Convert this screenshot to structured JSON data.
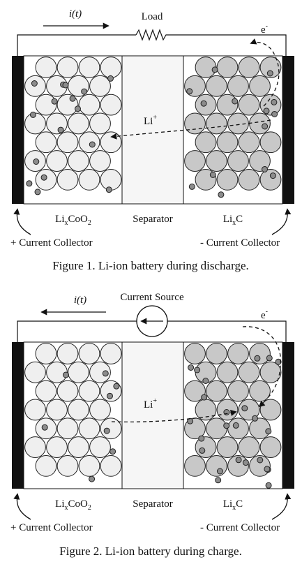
{
  "figure1": {
    "current_label": "i(t)",
    "device_label": "Load",
    "electron_label": "e",
    "electron_sup": "-",
    "ion_label": "Li",
    "ion_sup": "+",
    "cathode_label_base": "Li",
    "cathode_label_sub": "x",
    "cathode_label_rest": "CoO",
    "cathode_label_sub2": "2",
    "separator_label": "Separator",
    "anode_label_base": "Li",
    "anode_label_sub": "x",
    "anode_label_rest": "C",
    "pos_collector_label": "+ Current Collector",
    "neg_collector_label": "- Current Collector",
    "caption": "Figure 1. Li-ion battery during discharge."
  },
  "figure2": {
    "current_label": "i(t)",
    "device_label": "Current Source",
    "electron_label": "e",
    "electron_sup": "-",
    "ion_label": "Li",
    "ion_sup": "+",
    "cathode_label_base": "Li",
    "cathode_label_sub": "x",
    "cathode_label_rest": "CoO",
    "cathode_label_sub2": "2",
    "separator_label": "Separator",
    "anode_label_base": "Li",
    "anode_label_sub": "x",
    "anode_label_rest": "C",
    "pos_collector_label": "+ Current Collector",
    "neg_collector_label": "- Current Collector",
    "caption": "Figure 2. Li-ion battery during charge."
  },
  "colors": {
    "cathode_particle": "#efefef",
    "anode_particle": "#c8c8c8",
    "lithium_dot": "#8c8c8c",
    "collector": "#111111",
    "separator": "#f6f6f6"
  }
}
